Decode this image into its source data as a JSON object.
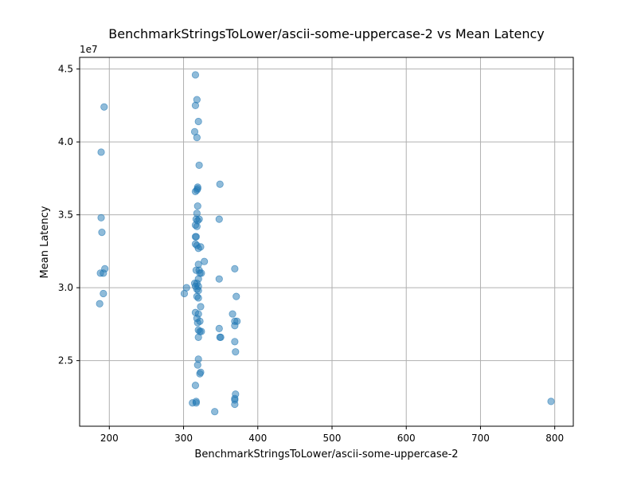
{
  "chart_data": {
    "type": "scatter",
    "title": "BenchmarkStringsToLower/ascii-some-uppercase-2 vs Mean Latency",
    "xlabel": "BenchmarkStringsToLower/ascii-some-uppercase-2",
    "ylabel": "Mean Latency",
    "y_offset_label": "1e7",
    "xlim": [
      160,
      825
    ],
    "ylim": [
      20500000,
      45800000
    ],
    "x_ticks": [
      200,
      300,
      400,
      500,
      600,
      700,
      800
    ],
    "x_tick_labels": [
      "200",
      "300",
      "400",
      "500",
      "600",
      "700",
      "800"
    ],
    "y_ticks": [
      25000000,
      30000000,
      35000000,
      40000000,
      45000000
    ],
    "y_tick_labels": [
      "2.5",
      "3.0",
      "3.5",
      "4.0",
      "4.5"
    ],
    "grid": true,
    "marker_color": "#1f77b4",
    "marker_alpha": 0.5,
    "points": [
      [
        193,
        42400000
      ],
      [
        189,
        39300000
      ],
      [
        189,
        34800000
      ],
      [
        190,
        33800000
      ],
      [
        194,
        31300000
      ],
      [
        188,
        31000000
      ],
      [
        192,
        31000000
      ],
      [
        192,
        29600000
      ],
      [
        187,
        28900000
      ],
      [
        316,
        44600000
      ],
      [
        318,
        42900000
      ],
      [
        316,
        42500000
      ],
      [
        320,
        41400000
      ],
      [
        315,
        40700000
      ],
      [
        318,
        40300000
      ],
      [
        321,
        38400000
      ],
      [
        319,
        36900000
      ],
      [
        318,
        36700000
      ],
      [
        316,
        36600000
      ],
      [
        319,
        36800000
      ],
      [
        319,
        35600000
      ],
      [
        318,
        35100000
      ],
      [
        317,
        34700000
      ],
      [
        319,
        34600000
      ],
      [
        321,
        34700000
      ],
      [
        316,
        34300000
      ],
      [
        318,
        34200000
      ],
      [
        317,
        33500000
      ],
      [
        316,
        33500000
      ],
      [
        316,
        33000000
      ],
      [
        318,
        32900000
      ],
      [
        320,
        32700000
      ],
      [
        323,
        32800000
      ],
      [
        328,
        31800000
      ],
      [
        320,
        31600000
      ],
      [
        317,
        31200000
      ],
      [
        321,
        31200000
      ],
      [
        322,
        31000000
      ],
      [
        324,
        31000000
      ],
      [
        320,
        30600000
      ],
      [
        315,
        30300000
      ],
      [
        318,
        30300000
      ],
      [
        320,
        30100000
      ],
      [
        316,
        30100000
      ],
      [
        318,
        29900000
      ],
      [
        320,
        29800000
      ],
      [
        318,
        29400000
      ],
      [
        320,
        29300000
      ],
      [
        323,
        28700000
      ],
      [
        316,
        28300000
      ],
      [
        320,
        28200000
      ],
      [
        318,
        27900000
      ],
      [
        319,
        27600000
      ],
      [
        322,
        27700000
      ],
      [
        320,
        27100000
      ],
      [
        322,
        27000000
      ],
      [
        324,
        27000000
      ],
      [
        320,
        26600000
      ],
      [
        320,
        25100000
      ],
      [
        319,
        24700000
      ],
      [
        323,
        24200000
      ],
      [
        322,
        24100000
      ],
      [
        316,
        23300000
      ],
      [
        317,
        22200000
      ],
      [
        317,
        22100000
      ],
      [
        312,
        22100000
      ],
      [
        304,
        30000000
      ],
      [
        301,
        29600000
      ],
      [
        349,
        37100000
      ],
      [
        348,
        34700000
      ],
      [
        348,
        30600000
      ],
      [
        348,
        27200000
      ],
      [
        349,
        26600000
      ],
      [
        350,
        26600000
      ],
      [
        342,
        21500000
      ],
      [
        369,
        31300000
      ],
      [
        371,
        29400000
      ],
      [
        366,
        28200000
      ],
      [
        369,
        27700000
      ],
      [
        372,
        27700000
      ],
      [
        369,
        27400000
      ],
      [
        369,
        26300000
      ],
      [
        370,
        25600000
      ],
      [
        370,
        22700000
      ],
      [
        369,
        22400000
      ],
      [
        369,
        22300000
      ],
      [
        369,
        22000000
      ],
      [
        795,
        22200000
      ]
    ]
  }
}
